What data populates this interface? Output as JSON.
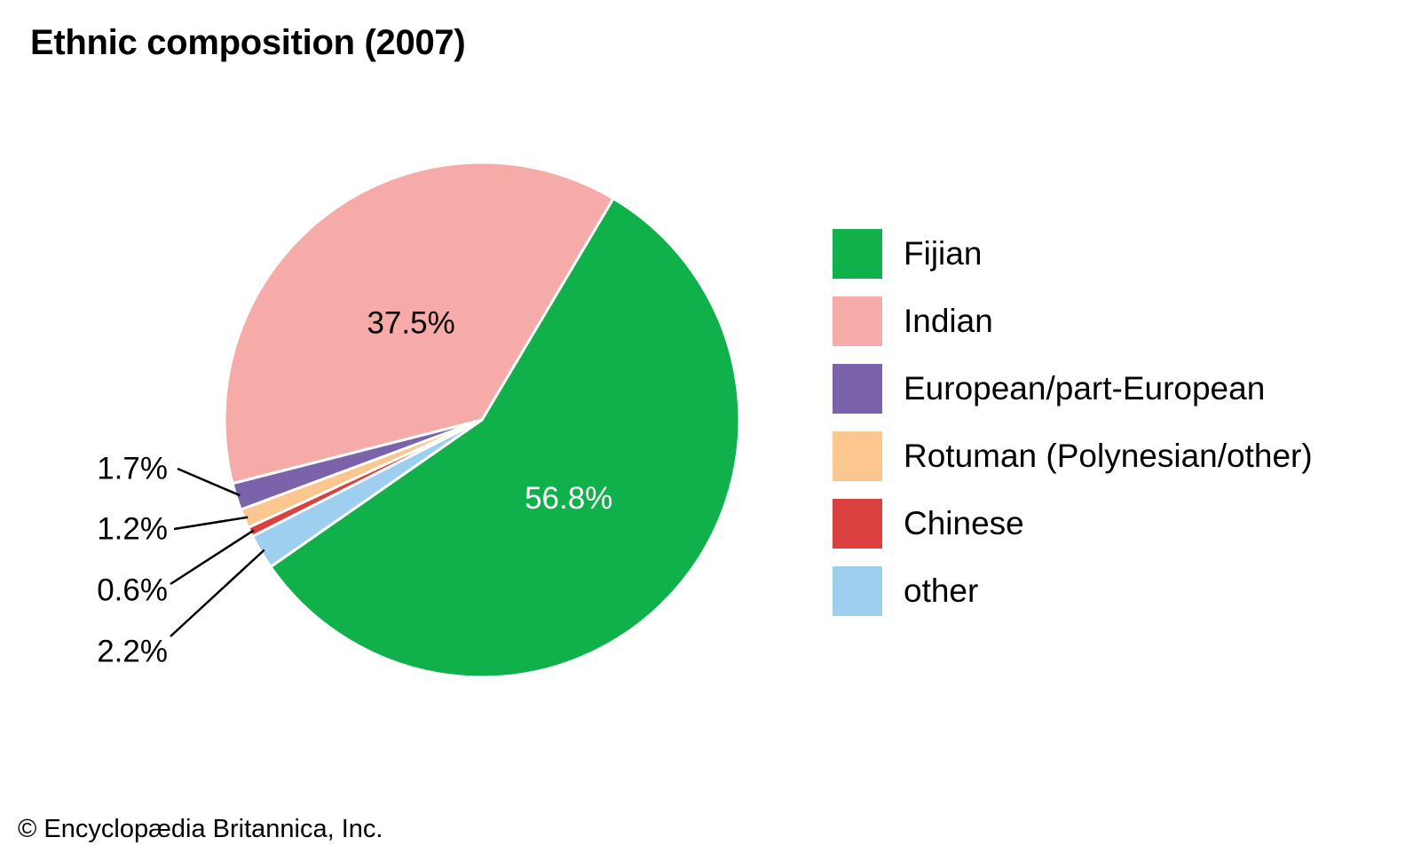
{
  "title": "Ethnic composition (2007)",
  "credit": "© Encyclopædia Britannica, Inc.",
  "chart_data": {
    "type": "pie",
    "title": "Ethnic composition (2007)",
    "start": "clockwise from the Fijian/Indian boundary near 1 o'clock",
    "legend_position": "right",
    "slices": [
      {
        "label": "Fijian",
        "value": 56.8,
        "display": "56.8%",
        "color": "#10b04b",
        "label_color": "#ffffff",
        "callout": false
      },
      {
        "label": "other",
        "value": 2.2,
        "display": "2.2%",
        "color": "#9fcfee",
        "callout": true
      },
      {
        "label": "Chinese",
        "value": 0.6,
        "display": "0.6%",
        "color": "#da4040",
        "callout": true
      },
      {
        "label": "Rotuman (Polynesian/other)",
        "value": 1.2,
        "display": "1.2%",
        "color": "#fbc78e",
        "callout": true
      },
      {
        "label": "European/part-European",
        "value": 1.7,
        "display": "1.7%",
        "color": "#7b63ab",
        "callout": true
      },
      {
        "label": "Indian",
        "value": 37.5,
        "display": "37.5%",
        "color": "#f6aba8",
        "label_color": "#000000",
        "callout": false
      }
    ]
  },
  "legend": [
    {
      "label": "Fijian",
      "color": "#10b04b"
    },
    {
      "label": "Indian",
      "color": "#f6aba8"
    },
    {
      "label": "European/part-European",
      "color": "#7b63ab"
    },
    {
      "label": "Rotuman (Polynesian/other)",
      "color": "#fbc78e"
    },
    {
      "label": "Chinese",
      "color": "#da4040"
    },
    {
      "label": "other",
      "color": "#9fcfee"
    }
  ]
}
